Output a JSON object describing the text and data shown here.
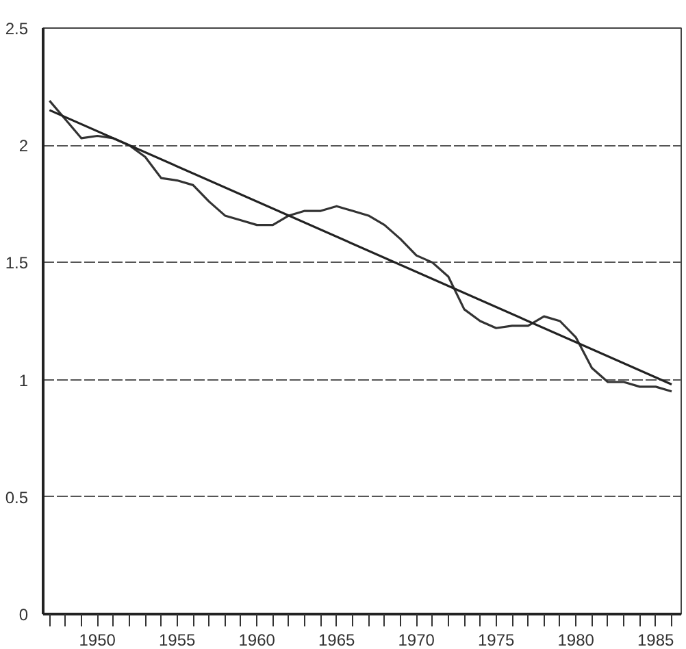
{
  "chart_data": {
    "type": "line",
    "x": [
      1947,
      1948,
      1949,
      1950,
      1951,
      1952,
      1953,
      1954,
      1955,
      1956,
      1957,
      1958,
      1959,
      1960,
      1961,
      1962,
      1963,
      1964,
      1965,
      1966,
      1967,
      1968,
      1969,
      1970,
      1971,
      1972,
      1973,
      1974,
      1975,
      1976,
      1977,
      1978,
      1979,
      1980,
      1981,
      1982,
      1983,
      1984,
      1985,
      1986
    ],
    "series": [
      {
        "color": "#333333",
        "values": [
          2.19,
          2.11,
          2.03,
          2.04,
          2.03,
          2.0,
          1.95,
          1.86,
          1.85,
          1.83,
          1.76,
          1.7,
          1.68,
          1.66,
          1.66,
          1.7,
          1.72,
          1.72,
          1.74,
          1.72,
          1.7,
          1.66,
          1.6,
          1.53,
          1.5,
          1.44,
          1.3,
          1.25,
          1.22,
          1.23,
          1.23,
          1.27,
          1.25,
          1.18,
          1.05,
          0.99,
          0.99,
          0.97,
          0.97,
          0.95
        ]
      },
      {
        "color": "#222222",
        "x": [
          1947,
          1986
        ],
        "values": [
          2.15,
          0.98
        ]
      }
    ],
    "xlim": [
      1946.6,
      1986.6
    ],
    "xticks": [
      {
        "value": 1947,
        "label": null
      },
      {
        "value": 1948,
        "label": null
      },
      {
        "value": 1949,
        "label": null
      },
      {
        "value": 1950,
        "label": "1950"
      },
      {
        "value": 1951,
        "label": null
      },
      {
        "value": 1952,
        "label": null
      },
      {
        "value": 1953,
        "label": null
      },
      {
        "value": 1954,
        "label": null
      },
      {
        "value": 1955,
        "label": "1955"
      },
      {
        "value": 1956,
        "label": null
      },
      {
        "value": 1957,
        "label": null
      },
      {
        "value": 1958,
        "label": null
      },
      {
        "value": 1959,
        "label": null
      },
      {
        "value": 1960,
        "label": "1960"
      },
      {
        "value": 1961,
        "label": null
      },
      {
        "value": 1962,
        "label": null
      },
      {
        "value": 1963,
        "label": null
      },
      {
        "value": 1964,
        "label": null
      },
      {
        "value": 1965,
        "label": "1965"
      },
      {
        "value": 1966,
        "label": null
      },
      {
        "value": 1967,
        "label": null
      },
      {
        "value": 1968,
        "label": null
      },
      {
        "value": 1969,
        "label": null
      },
      {
        "value": 1970,
        "label": "1970"
      },
      {
        "value": 1971,
        "label": null
      },
      {
        "value": 1972,
        "label": null
      },
      {
        "value": 1973,
        "label": null
      },
      {
        "value": 1974,
        "label": null
      },
      {
        "value": 1975,
        "label": "1975"
      },
      {
        "value": 1976,
        "label": null
      },
      {
        "value": 1977,
        "label": null
      },
      {
        "value": 1978,
        "label": null
      },
      {
        "value": 1979,
        "label": null
      },
      {
        "value": 1980,
        "label": "1980"
      },
      {
        "value": 1981,
        "label": null
      },
      {
        "value": 1982,
        "label": null
      },
      {
        "value": 1983,
        "label": null
      },
      {
        "value": 1984,
        "label": null
      },
      {
        "value": 1985,
        "label": "1985"
      },
      {
        "value": 1986,
        "label": null
      }
    ],
    "ylim": [
      0,
      2.5
    ],
    "yticks": [
      0,
      0.5,
      1,
      1.5,
      2,
      2.5
    ],
    "grid": "y",
    "marker": "none",
    "line_style": "solid"
  }
}
